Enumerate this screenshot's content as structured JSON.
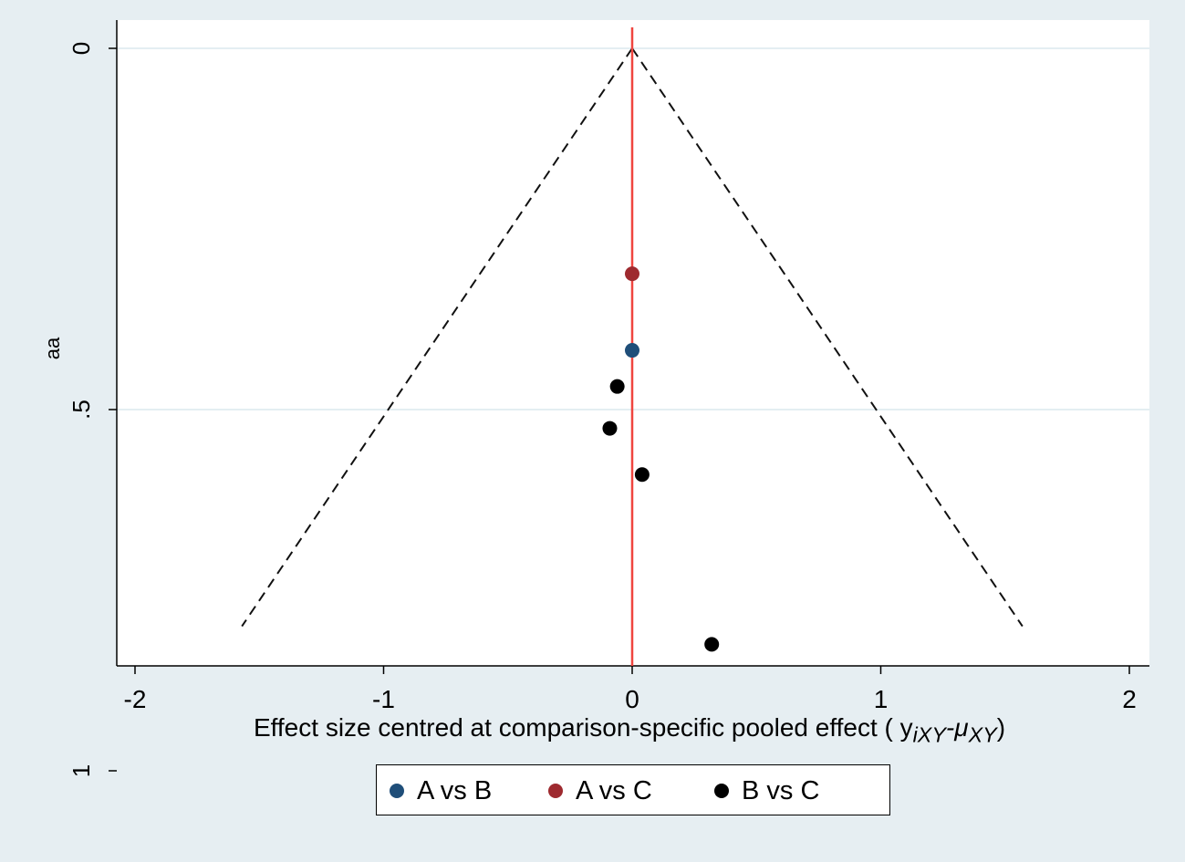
{
  "chart_data": {
    "type": "scatter",
    "title": "",
    "xlabel": "Effect size centred at comparison-specific pooled effect ( y",
    "xlabel_parts": {
      "sub1": "iXY",
      "mid": "-μ",
      "sub2": "XY",
      "close": ")"
    },
    "ylabel": "aa",
    "xlim": [
      -2.05,
      2.08
    ],
    "ylim": [
      0,
      0.85
    ],
    "y_reversed": true,
    "x_ticks": [
      "-2",
      "-1",
      "0",
      "1",
      "2"
    ],
    "x_tick_values": [
      -2,
      -1,
      0,
      1,
      2
    ],
    "y_ticks": [
      "0",
      ".5",
      "1"
    ],
    "y_tick_values": [
      0,
      0.5,
      1
    ],
    "gridlines_y": [
      0,
      0.5
    ],
    "reference_line_x": 0,
    "funnel": {
      "apex": [
        0,
        0
      ],
      "left_base": [
        -1.57,
        0.8
      ],
      "right_base": [
        1.57,
        0.8
      ]
    },
    "series": [
      {
        "name": "A vs B",
        "color": "#1f4e79",
        "points": [
          {
            "x": 0.0,
            "y": 0.418
          }
        ]
      },
      {
        "name": "A vs C",
        "color": "#9e2a2f",
        "points": [
          {
            "x": 0.0,
            "y": 0.312
          }
        ]
      },
      {
        "name": "B vs C",
        "color": "#000000",
        "points": [
          {
            "x": -0.06,
            "y": 0.468
          },
          {
            "x": -0.09,
            "y": 0.526
          },
          {
            "x": 0.04,
            "y": 0.59
          },
          {
            "x": 0.32,
            "y": 0.825
          }
        ]
      }
    ],
    "legend_position": "bottom"
  },
  "legend": [
    {
      "label": "A vs B",
      "color": "#1f4e79"
    },
    {
      "label": "A vs C",
      "color": "#9e2a2f"
    },
    {
      "label": "B vs C",
      "color": "#000000"
    }
  ]
}
